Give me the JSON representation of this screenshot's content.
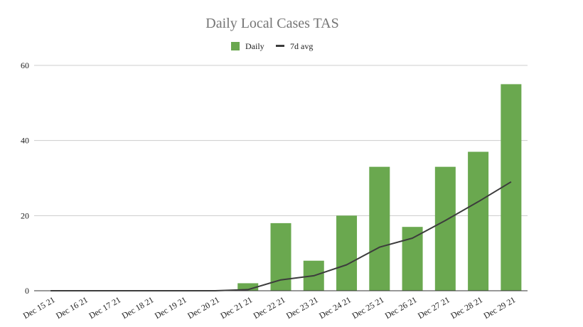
{
  "chart_data": {
    "type": "bar",
    "title": "Daily Local Cases TAS",
    "xlabel": "",
    "ylabel": "",
    "ylim": [
      0,
      60
    ],
    "yticks": [
      0,
      20,
      40,
      60
    ],
    "grid": true,
    "legend_position": "top",
    "categories": [
      "Dec 15 21",
      "Dec 16 21",
      "Dec 17 21",
      "Dec 18 21",
      "Dec 19 21",
      "Dec 20 21",
      "Dec 21 21",
      "Dec 22 21",
      "Dec 23 21",
      "Dec 24 21",
      "Dec 25 21",
      "Dec 26 21",
      "Dec 27 21",
      "Dec 28 21",
      "Dec 29 21"
    ],
    "series": [
      {
        "name": "Daily",
        "type": "bar",
        "color": "#6aa84f",
        "values": [
          0,
          0,
          0,
          0,
          0,
          0,
          2,
          18,
          8,
          20,
          33,
          17,
          33,
          37,
          55
        ]
      },
      {
        "name": "7d avg",
        "type": "line",
        "color": "#3c3c3c",
        "values": [
          0,
          0,
          0,
          0,
          0,
          0,
          0.3,
          2.9,
          4.0,
          6.9,
          11.6,
          14.0,
          18.7,
          23.7,
          29.0
        ]
      }
    ]
  }
}
